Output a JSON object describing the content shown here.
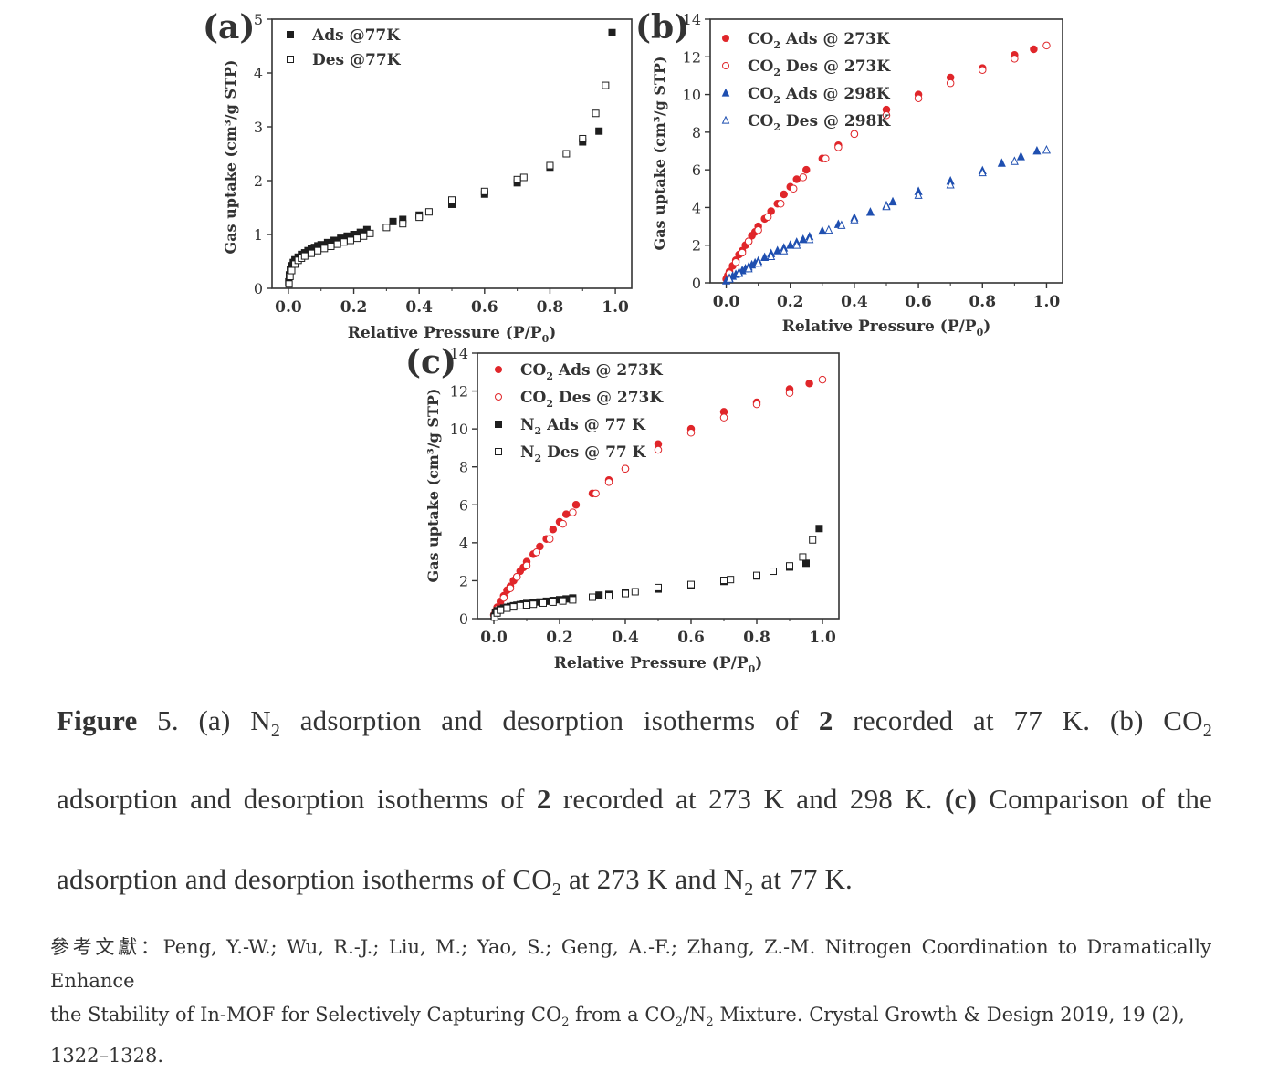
{
  "colors": {
    "red": "#e0262a",
    "blue": "#1f4fb0",
    "black": "#1e1e1e"
  },
  "chart_data": [
    {
      "type": "scatter",
      "panel_label": "(a)",
      "xlabel": "Relative Pressure (P/P",
      "xlabel_sub": "0",
      "xlabel_end": ")",
      "ylabel": "Gas uptake (cm³/g STP)",
      "xlim": [
        -0.05,
        1.05
      ],
      "ylim": [
        0,
        5
      ],
      "xticks": [
        "0.0",
        "0.2",
        "0.4",
        "0.6",
        "0.8",
        "1.0"
      ],
      "xtick_values": [
        0,
        0.2,
        0.4,
        0.6,
        0.8,
        1.0
      ],
      "yticks": [
        "0",
        "1",
        "2",
        "3",
        "4",
        "5"
      ],
      "ytick_values": [
        0,
        1,
        2,
        3,
        4,
        5
      ],
      "legend": "top-left",
      "series": [
        {
          "name": "Ads @77K",
          "name_sub": "",
          "name_rest": "",
          "marker": "square",
          "filled": true,
          "color": "black",
          "x": [
            0.001,
            0.003,
            0.006,
            0.01,
            0.015,
            0.02,
            0.03,
            0.04,
            0.05,
            0.06,
            0.07,
            0.08,
            0.09,
            0.1,
            0.12,
            0.14,
            0.16,
            0.18,
            0.2,
            0.22,
            0.24,
            0.32,
            0.35,
            0.4,
            0.5,
            0.6,
            0.7,
            0.8,
            0.9,
            0.95,
            0.99
          ],
          "y": [
            0.12,
            0.25,
            0.35,
            0.42,
            0.48,
            0.53,
            0.58,
            0.63,
            0.66,
            0.7,
            0.73,
            0.76,
            0.79,
            0.81,
            0.85,
            0.89,
            0.93,
            0.97,
            1.0,
            1.04,
            1.09,
            1.24,
            1.28,
            1.36,
            1.56,
            1.75,
            1.96,
            2.25,
            2.72,
            2.92,
            4.75
          ]
        },
        {
          "name": "Des  @77K",
          "name_sub": "",
          "name_rest": "",
          "marker": "square",
          "filled": false,
          "color": "black",
          "x": [
            0.002,
            0.005,
            0.01,
            0.02,
            0.03,
            0.04,
            0.05,
            0.07,
            0.09,
            0.11,
            0.13,
            0.15,
            0.17,
            0.19,
            0.21,
            0.23,
            0.25,
            0.3,
            0.35,
            0.4,
            0.43,
            0.5,
            0.6,
            0.7,
            0.72,
            0.8,
            0.85,
            0.9,
            0.94,
            0.97
          ],
          "y": [
            0.08,
            0.22,
            0.33,
            0.45,
            0.52,
            0.56,
            0.6,
            0.65,
            0.7,
            0.74,
            0.78,
            0.82,
            0.86,
            0.89,
            0.93,
            0.97,
            1.02,
            1.13,
            1.2,
            1.32,
            1.42,
            1.64,
            1.8,
            2.02,
            2.06,
            2.28,
            2.5,
            2.78,
            3.25,
            3.77
          ]
        }
      ]
    },
    {
      "type": "scatter",
      "panel_label": "(b)",
      "xlabel": "Relative Pressure (P/P",
      "xlabel_sub": "0",
      "xlabel_end": ")",
      "ylabel": "Gas uptake (cm³/g STP)",
      "xlim": [
        -0.05,
        1.05
      ],
      "ylim": [
        0,
        14
      ],
      "xticks": [
        "0.0",
        "0.2",
        "0.4",
        "0.6",
        "0.8",
        "1.0"
      ],
      "xtick_values": [
        0,
        0.2,
        0.4,
        0.6,
        0.8,
        1.0
      ],
      "yticks": [
        "0",
        "2",
        "4",
        "6",
        "8",
        "10",
        "12",
        "14"
      ],
      "ytick_values": [
        0,
        2,
        4,
        6,
        8,
        10,
        12,
        14
      ],
      "legend": "top-left",
      "series": [
        {
          "name": "CO",
          "name_sub": "2",
          "name_rest": " Ads @ 273K",
          "marker": "circle",
          "filled": true,
          "color": "red",
          "x": [
            0.0,
            0.005,
            0.01,
            0.02,
            0.03,
            0.04,
            0.05,
            0.06,
            0.07,
            0.08,
            0.09,
            0.1,
            0.12,
            0.14,
            0.16,
            0.18,
            0.2,
            0.22,
            0.25,
            0.3,
            0.35,
            0.4,
            0.5,
            0.6,
            0.7,
            0.8,
            0.9,
            0.96
          ],
          "y": [
            0.2,
            0.4,
            0.6,
            0.9,
            1.2,
            1.5,
            1.7,
            2.0,
            2.2,
            2.5,
            2.7,
            3.0,
            3.4,
            3.8,
            4.2,
            4.7,
            5.1,
            5.5,
            6.0,
            6.6,
            7.3,
            7.9,
            9.2,
            10.0,
            10.9,
            11.4,
            12.1,
            12.4
          ]
        },
        {
          "name": "CO",
          "name_sub": "2",
          "name_rest": " Des @ 273K",
          "marker": "circle",
          "filled": false,
          "color": "red",
          "x": [
            0.01,
            0.03,
            0.05,
            0.07,
            0.1,
            0.13,
            0.17,
            0.21,
            0.24,
            0.31,
            0.35,
            0.4,
            0.5,
            0.6,
            0.7,
            0.8,
            0.9,
            1.0
          ],
          "y": [
            0.5,
            1.1,
            1.6,
            2.2,
            2.8,
            3.5,
            4.2,
            5.0,
            5.6,
            6.6,
            7.2,
            7.9,
            8.9,
            9.8,
            10.6,
            11.3,
            11.9,
            12.6
          ]
        },
        {
          "name": "CO",
          "name_sub": "2",
          "name_rest": " Ads @ 298K",
          "marker": "triangle",
          "filled": true,
          "color": "blue",
          "x": [
            0.0,
            0.01,
            0.02,
            0.03,
            0.04,
            0.05,
            0.06,
            0.07,
            0.08,
            0.09,
            0.1,
            0.12,
            0.14,
            0.16,
            0.18,
            0.2,
            0.22,
            0.24,
            0.26,
            0.3,
            0.35,
            0.4,
            0.45,
            0.5,
            0.52,
            0.6,
            0.7,
            0.8,
            0.86,
            0.92,
            0.97
          ],
          "y": [
            0.1,
            0.25,
            0.35,
            0.45,
            0.55,
            0.65,
            0.75,
            0.85,
            0.95,
            1.05,
            1.15,
            1.35,
            1.55,
            1.7,
            1.85,
            2.0,
            2.15,
            2.3,
            2.45,
            2.75,
            3.1,
            3.45,
            3.75,
            4.1,
            4.3,
            4.85,
            5.4,
            5.95,
            6.35,
            6.7,
            7.0
          ]
        },
        {
          "name": "CO",
          "name_sub": "2",
          "name_rest": " Des @ 298K",
          "marker": "triangle",
          "filled": false,
          "color": "blue",
          "x": [
            0.01,
            0.04,
            0.07,
            0.1,
            0.14,
            0.18,
            0.22,
            0.26,
            0.32,
            0.36,
            0.4,
            0.5,
            0.6,
            0.7,
            0.8,
            0.9,
            1.0
          ],
          "y": [
            0.2,
            0.5,
            0.75,
            1.05,
            1.4,
            1.7,
            2.0,
            2.3,
            2.8,
            3.05,
            3.35,
            4.05,
            4.65,
            5.2,
            5.85,
            6.45,
            7.05
          ]
        }
      ]
    },
    {
      "type": "scatter",
      "panel_label": "(c)",
      "xlabel": "Relative Pressure (P/P",
      "xlabel_sub": "0",
      "xlabel_end": ")",
      "ylabel": "Gas uptake (cm³/g STP)",
      "xlim": [
        -0.05,
        1.05
      ],
      "ylim": [
        0,
        14
      ],
      "xticks": [
        "0.0",
        "0.2",
        "0.4",
        "0.6",
        "0.8",
        "1.0"
      ],
      "xtick_values": [
        0,
        0.2,
        0.4,
        0.6,
        0.8,
        1.0
      ],
      "yticks": [
        "0",
        "2",
        "4",
        "6",
        "8",
        "10",
        "12",
        "14"
      ],
      "ytick_values": [
        0,
        2,
        4,
        6,
        8,
        10,
        12,
        14
      ],
      "legend": "top-left",
      "series": [
        {
          "name": "CO",
          "name_sub": "2",
          "name_rest": " Ads @ 273K",
          "marker": "circle",
          "filled": true,
          "color": "red",
          "x": [
            0.0,
            0.005,
            0.01,
            0.02,
            0.03,
            0.04,
            0.05,
            0.06,
            0.07,
            0.08,
            0.09,
            0.1,
            0.12,
            0.14,
            0.16,
            0.18,
            0.2,
            0.22,
            0.25,
            0.3,
            0.35,
            0.4,
            0.5,
            0.6,
            0.7,
            0.8,
            0.9,
            0.96
          ],
          "y": [
            0.2,
            0.4,
            0.6,
            0.9,
            1.2,
            1.5,
            1.7,
            2.0,
            2.2,
            2.5,
            2.7,
            3.0,
            3.4,
            3.8,
            4.2,
            4.7,
            5.1,
            5.5,
            6.0,
            6.6,
            7.3,
            7.9,
            9.2,
            10.0,
            10.9,
            11.4,
            12.1,
            12.4
          ]
        },
        {
          "name": "CO",
          "name_sub": "2",
          "name_rest": " Des @ 273K",
          "marker": "circle",
          "filled": false,
          "color": "red",
          "x": [
            0.01,
            0.03,
            0.05,
            0.07,
            0.1,
            0.13,
            0.17,
            0.21,
            0.24,
            0.31,
            0.35,
            0.4,
            0.5,
            0.6,
            0.7,
            0.8,
            0.9,
            1.0
          ],
          "y": [
            0.5,
            1.1,
            1.6,
            2.2,
            2.8,
            3.5,
            4.2,
            5.0,
            5.6,
            6.6,
            7.2,
            7.9,
            8.9,
            9.8,
            10.6,
            11.3,
            11.9,
            12.6
          ]
        },
        {
          "name": "N",
          "name_sub": "2",
          "name_rest": " Ads @ 77 K",
          "marker": "square",
          "filled": true,
          "color": "black",
          "x": [
            0.001,
            0.005,
            0.01,
            0.02,
            0.03,
            0.04,
            0.05,
            0.06,
            0.07,
            0.08,
            0.09,
            0.1,
            0.12,
            0.14,
            0.16,
            0.18,
            0.2,
            0.22,
            0.24,
            0.32,
            0.35,
            0.4,
            0.5,
            0.6,
            0.7,
            0.8,
            0.9,
            0.95,
            0.99
          ],
          "y": [
            0.12,
            0.3,
            0.42,
            0.5,
            0.56,
            0.6,
            0.64,
            0.68,
            0.71,
            0.74,
            0.77,
            0.8,
            0.84,
            0.88,
            0.92,
            0.96,
            1.0,
            1.04,
            1.09,
            1.24,
            1.28,
            1.36,
            1.56,
            1.75,
            1.96,
            2.25,
            2.72,
            2.92,
            4.75
          ]
        },
        {
          "name": "N",
          "name_sub": "2",
          "name_rest": " Des @ 77 K",
          "marker": "square",
          "filled": false,
          "color": "black",
          "x": [
            0.002,
            0.01,
            0.02,
            0.04,
            0.06,
            0.08,
            0.1,
            0.12,
            0.15,
            0.18,
            0.21,
            0.24,
            0.3,
            0.35,
            0.4,
            0.43,
            0.5,
            0.6,
            0.7,
            0.72,
            0.8,
            0.85,
            0.9,
            0.94,
            0.97
          ],
          "y": [
            0.08,
            0.3,
            0.45,
            0.55,
            0.62,
            0.68,
            0.72,
            0.76,
            0.82,
            0.87,
            0.93,
            0.99,
            1.13,
            1.2,
            1.32,
            1.42,
            1.64,
            1.8,
            2.02,
            2.06,
            2.28,
            2.5,
            2.78,
            3.25,
            4.15
          ]
        }
      ]
    }
  ],
  "caption": {
    "line1": {
      "fig": "Figure",
      "num": "5",
      "dot": ".",
      "t1": "(a) N",
      "s1": "2",
      "t2": " adsorption and desorption isotherms of ",
      "b1": "2",
      "t3": " recorded at 77 K. (b) CO",
      "s2": "2"
    },
    "line2": {
      "t1": "adsorption and desorption isotherms of ",
      "b1": "2",
      "t2": " recorded at 273 K and 298 K. ",
      "b2": "(c)",
      "t3": " Comparison of the"
    },
    "line3": {
      "t1": "adsorption and desorption isotherms of CO",
      "s1": "2",
      "t2": " at 273 K and N",
      "s2": "2",
      "t3": " at 77 K."
    }
  },
  "reference": {
    "line1": "參考文獻：Peng, Y.-W.; Wu, R.-J.; Liu, M.; Yao, S.; Geng, A.-F.; Zhang, Z.-M. Nitrogen Coordination to Dramatically Enhance",
    "l2a": "the Stability of In-MOF for Selectively Capturing CO",
    "l2s1": "2",
    "l2b": " from a CO",
    "l2s2": "2",
    "l2c": "/N",
    "l2s3": "2",
    "l2d": " Mixture. Crystal Growth & Design 2019, 19 (2),",
    "line3": "1322–1328."
  }
}
